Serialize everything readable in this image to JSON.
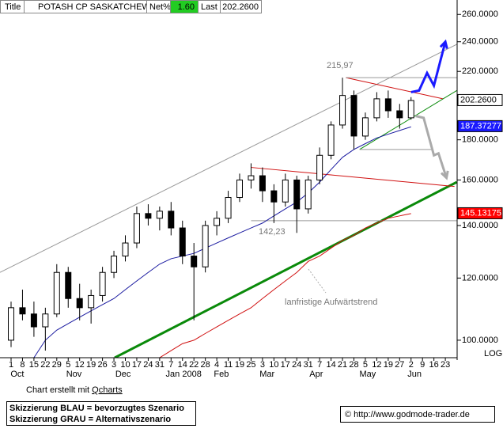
{
  "header": {
    "title_label": "Title",
    "symbol": "POTASH CP SASKATCHEW",
    "net_label": "Net%",
    "net_value": "1.60",
    "last_label": "Last",
    "last_value": "202.2600"
  },
  "chart_data": {
    "type": "candlestick",
    "log": true,
    "categories": [
      null,
      null,
      null,
      null,
      null,
      null,
      null,
      null,
      null,
      null,
      null,
      null,
      null,
      null,
      null,
      null,
      null,
      null,
      null,
      null,
      null,
      null,
      null,
      null,
      null,
      null,
      null,
      null,
      null,
      null,
      null,
      null,
      null,
      null,
      null,
      null
    ],
    "open": [
      100,
      110,
      108,
      104,
      108,
      122,
      113,
      110,
      114,
      122,
      128,
      133,
      145,
      143,
      146,
      139,
      128,
      124,
      140,
      143,
      152,
      160,
      162,
      155,
      150,
      160,
      147,
      160,
      172,
      188,
      205,
      182,
      192,
      203,
      196,
      192
    ],
    "high": [
      112,
      116,
      112,
      110,
      125,
      124,
      118,
      116,
      124,
      130,
      136,
      148,
      149,
      148,
      150,
      142,
      133,
      142,
      146,
      155,
      163,
      168,
      166,
      158,
      163,
      162,
      162,
      176,
      190,
      216,
      208,
      195,
      207,
      208,
      200,
      204
    ],
    "low": [
      98,
      106,
      101,
      97,
      107,
      110,
      106,
      105,
      112,
      120,
      126,
      131,
      140,
      138,
      136,
      125,
      106,
      122,
      136,
      141,
      150,
      156,
      150,
      141,
      148,
      137,
      145,
      158,
      170,
      186,
      175,
      180,
      190,
      192,
      186,
      191
    ],
    "close": [
      110,
      108,
      104,
      108,
      122,
      113,
      110,
      114,
      122,
      128,
      133,
      145,
      143,
      146,
      139,
      128,
      124,
      140,
      143,
      152,
      160,
      162,
      155,
      150,
      160,
      147,
      160,
      172,
      188,
      205,
      182,
      192,
      203,
      196,
      192,
      202
    ],
    "series": [
      {
        "color": "#1a1aa0",
        "values": [
          null,
          null,
          95,
          100,
          103,
          105,
          107,
          109,
          111,
          113,
          116,
          119,
          122,
          125,
          127,
          128,
          129,
          131,
          133,
          135,
          137,
          139,
          141,
          144,
          147,
          150,
          154,
          159,
          165,
          171,
          175,
          178,
          181,
          183,
          185,
          187
        ]
      },
      {
        "color": "#d01010",
        "values": [
          null,
          null,
          null,
          null,
          null,
          null,
          null,
          null,
          null,
          null,
          null,
          null,
          null,
          95,
          97,
          99,
          100,
          102,
          104,
          106,
          108,
          110,
          113,
          116,
          119,
          122,
          126,
          128,
          131,
          134,
          136,
          139,
          141,
          143,
          144,
          145
        ]
      }
    ],
    "lines": [
      {
        "color": "#0a8a0a",
        "style": "thick",
        "points": [
          [
            9.07,
            95
          ],
          [
            39,
            159
          ]
        ]
      },
      {
        "color": "#999999",
        "style": "thin",
        "points": [
          [
            -0.97,
            122
          ],
          [
            39.2,
            239
          ]
        ]
      },
      {
        "color": "#d01010",
        "style": "thin",
        "points": [
          [
            21,
            166
          ],
          [
            38.8,
            157
          ]
        ]
      },
      {
        "color": "#d01010",
        "style": "thin",
        "points": [
          [
            29.3,
            216
          ],
          [
            37.8,
            203
          ]
        ]
      },
      {
        "color": "#0a8a0a",
        "style": "thin",
        "points": [
          [
            30.5,
            175
          ],
          [
            39,
            208
          ]
        ]
      },
      {
        "color": "#999999",
        "style": "thin",
        "points": [
          [
            29.3,
            216
          ],
          [
            39,
            216
          ]
        ]
      },
      {
        "color": "#999999",
        "style": "thin",
        "points": [
          [
            21,
            142
          ],
          [
            39,
            142
          ]
        ]
      },
      {
        "color": "#999999",
        "style": "thin",
        "points": [
          [
            30.5,
            175
          ],
          [
            36.8,
            175
          ]
        ]
      }
    ],
    "sketches": [
      {
        "color": "#1a1aff",
        "points": [
          [
            35,
            207
          ],
          [
            35.7,
            208
          ],
          [
            36.4,
            219
          ],
          [
            37,
            211
          ],
          [
            38,
            240
          ]
        ]
      },
      {
        "color": "#aaaaaa",
        "points": [
          [
            35.4,
            193
          ],
          [
            36.1,
            192
          ],
          [
            37,
            172
          ],
          [
            37.4,
            173
          ],
          [
            38.1,
            161
          ]
        ]
      }
    ],
    "annotations": [
      "215,97",
      "142,23",
      "lanfristige Aufwärtstrend"
    ],
    "price_labels": [
      {
        "value": 202.26,
        "label": "202.2600",
        "color": "#ffffff",
        "text_color": "#000000"
      },
      {
        "value": 187.37277,
        "label": "187.37277",
        "color": "#1a1aff",
        "text_color": "#ffffff"
      },
      {
        "value": 145.13175,
        "label": "145.13175",
        "color": "#ff0000",
        "text_color": "#ffffff"
      }
    ],
    "ylim": [
      95,
      270
    ],
    "yticks": [
      {
        "value": 100,
        "label": "100.0000"
      },
      {
        "value": 120,
        "label": "120.0000"
      },
      {
        "value": 140,
        "label": "140.0000"
      },
      {
        "value": 160,
        "label": "160.0000"
      },
      {
        "value": 180,
        "label": "180.0000"
      },
      {
        "value": 200,
        "label": "200.0000"
      },
      {
        "value": 220,
        "label": "220.0000"
      },
      {
        "value": 240,
        "label": "240.0000"
      },
      {
        "value": 260,
        "label": "260.0000"
      }
    ],
    "scale_label": "LOG",
    "xticks": [
      {
        "value": 0,
        "label": "1"
      },
      {
        "value": 1,
        "label": "8"
      },
      {
        "value": 2,
        "label": "15"
      },
      {
        "value": 3,
        "label": "22"
      },
      {
        "value": 4,
        "label": "29"
      },
      {
        "value": 5,
        "label": "5"
      },
      {
        "value": 6,
        "label": "12"
      },
      {
        "value": 7,
        "label": "19"
      },
      {
        "value": 8,
        "label": "26"
      },
      {
        "value": 9,
        "label": "3"
      },
      {
        "value": 10,
        "label": "10"
      },
      {
        "value": 11,
        "label": "17"
      },
      {
        "value": 12,
        "label": "24"
      },
      {
        "value": 13,
        "label": "31"
      },
      {
        "value": 14,
        "label": "7"
      },
      {
        "value": 15,
        "label": "14"
      },
      {
        "value": 16,
        "label": "22"
      },
      {
        "value": 17,
        "label": "28"
      },
      {
        "value": 18,
        "label": "4"
      },
      {
        "value": 19,
        "label": "11"
      },
      {
        "value": 20,
        "label": "19"
      },
      {
        "value": 21,
        "label": "25"
      },
      {
        "value": 22,
        "label": "3"
      },
      {
        "value": 23,
        "label": "10"
      },
      {
        "value": 24,
        "label": "17"
      },
      {
        "value": 25,
        "label": "24"
      },
      {
        "value": 26,
        "label": "31"
      },
      {
        "value": 27,
        "label": "7"
      },
      {
        "value": 28,
        "label": "14"
      },
      {
        "value": 29,
        "label": "21"
      },
      {
        "value": 30,
        "label": "28"
      },
      {
        "value": 31,
        "label": "5"
      },
      {
        "value": 32,
        "label": "12"
      },
      {
        "value": 33,
        "label": "19"
      },
      {
        "value": 34,
        "label": "27"
      },
      {
        "value": 35,
        "label": "2"
      },
      {
        "value": 36,
        "label": "9"
      },
      {
        "value": 37,
        "label": "16"
      },
      {
        "value": 38,
        "label": "23"
      }
    ],
    "months": [
      {
        "value": 0.55,
        "label": "Oct"
      },
      {
        "value": 5.5,
        "label": "Nov"
      },
      {
        "value": 9.8,
        "label": "Dec"
      },
      {
        "value": 15.1,
        "label": "Jan 2008"
      },
      {
        "value": 18.4,
        "label": "Feb"
      },
      {
        "value": 22.4,
        "label": "Mar"
      },
      {
        "value": 26.7,
        "label": "Apr"
      },
      {
        "value": 31.2,
        "label": "May"
      },
      {
        "value": 35.3,
        "label": "Jun"
      }
    ]
  },
  "footer": {
    "credit": "Chart erstellt mit ",
    "credit_link": "Qcharts",
    "legend_blue": "Skizzierung BLAU = bevorzugtes Szenario",
    "legend_gray": "Skizzierung GRAU = Alternativszenario",
    "copyright": "© http://www.godmode-trader.de"
  }
}
